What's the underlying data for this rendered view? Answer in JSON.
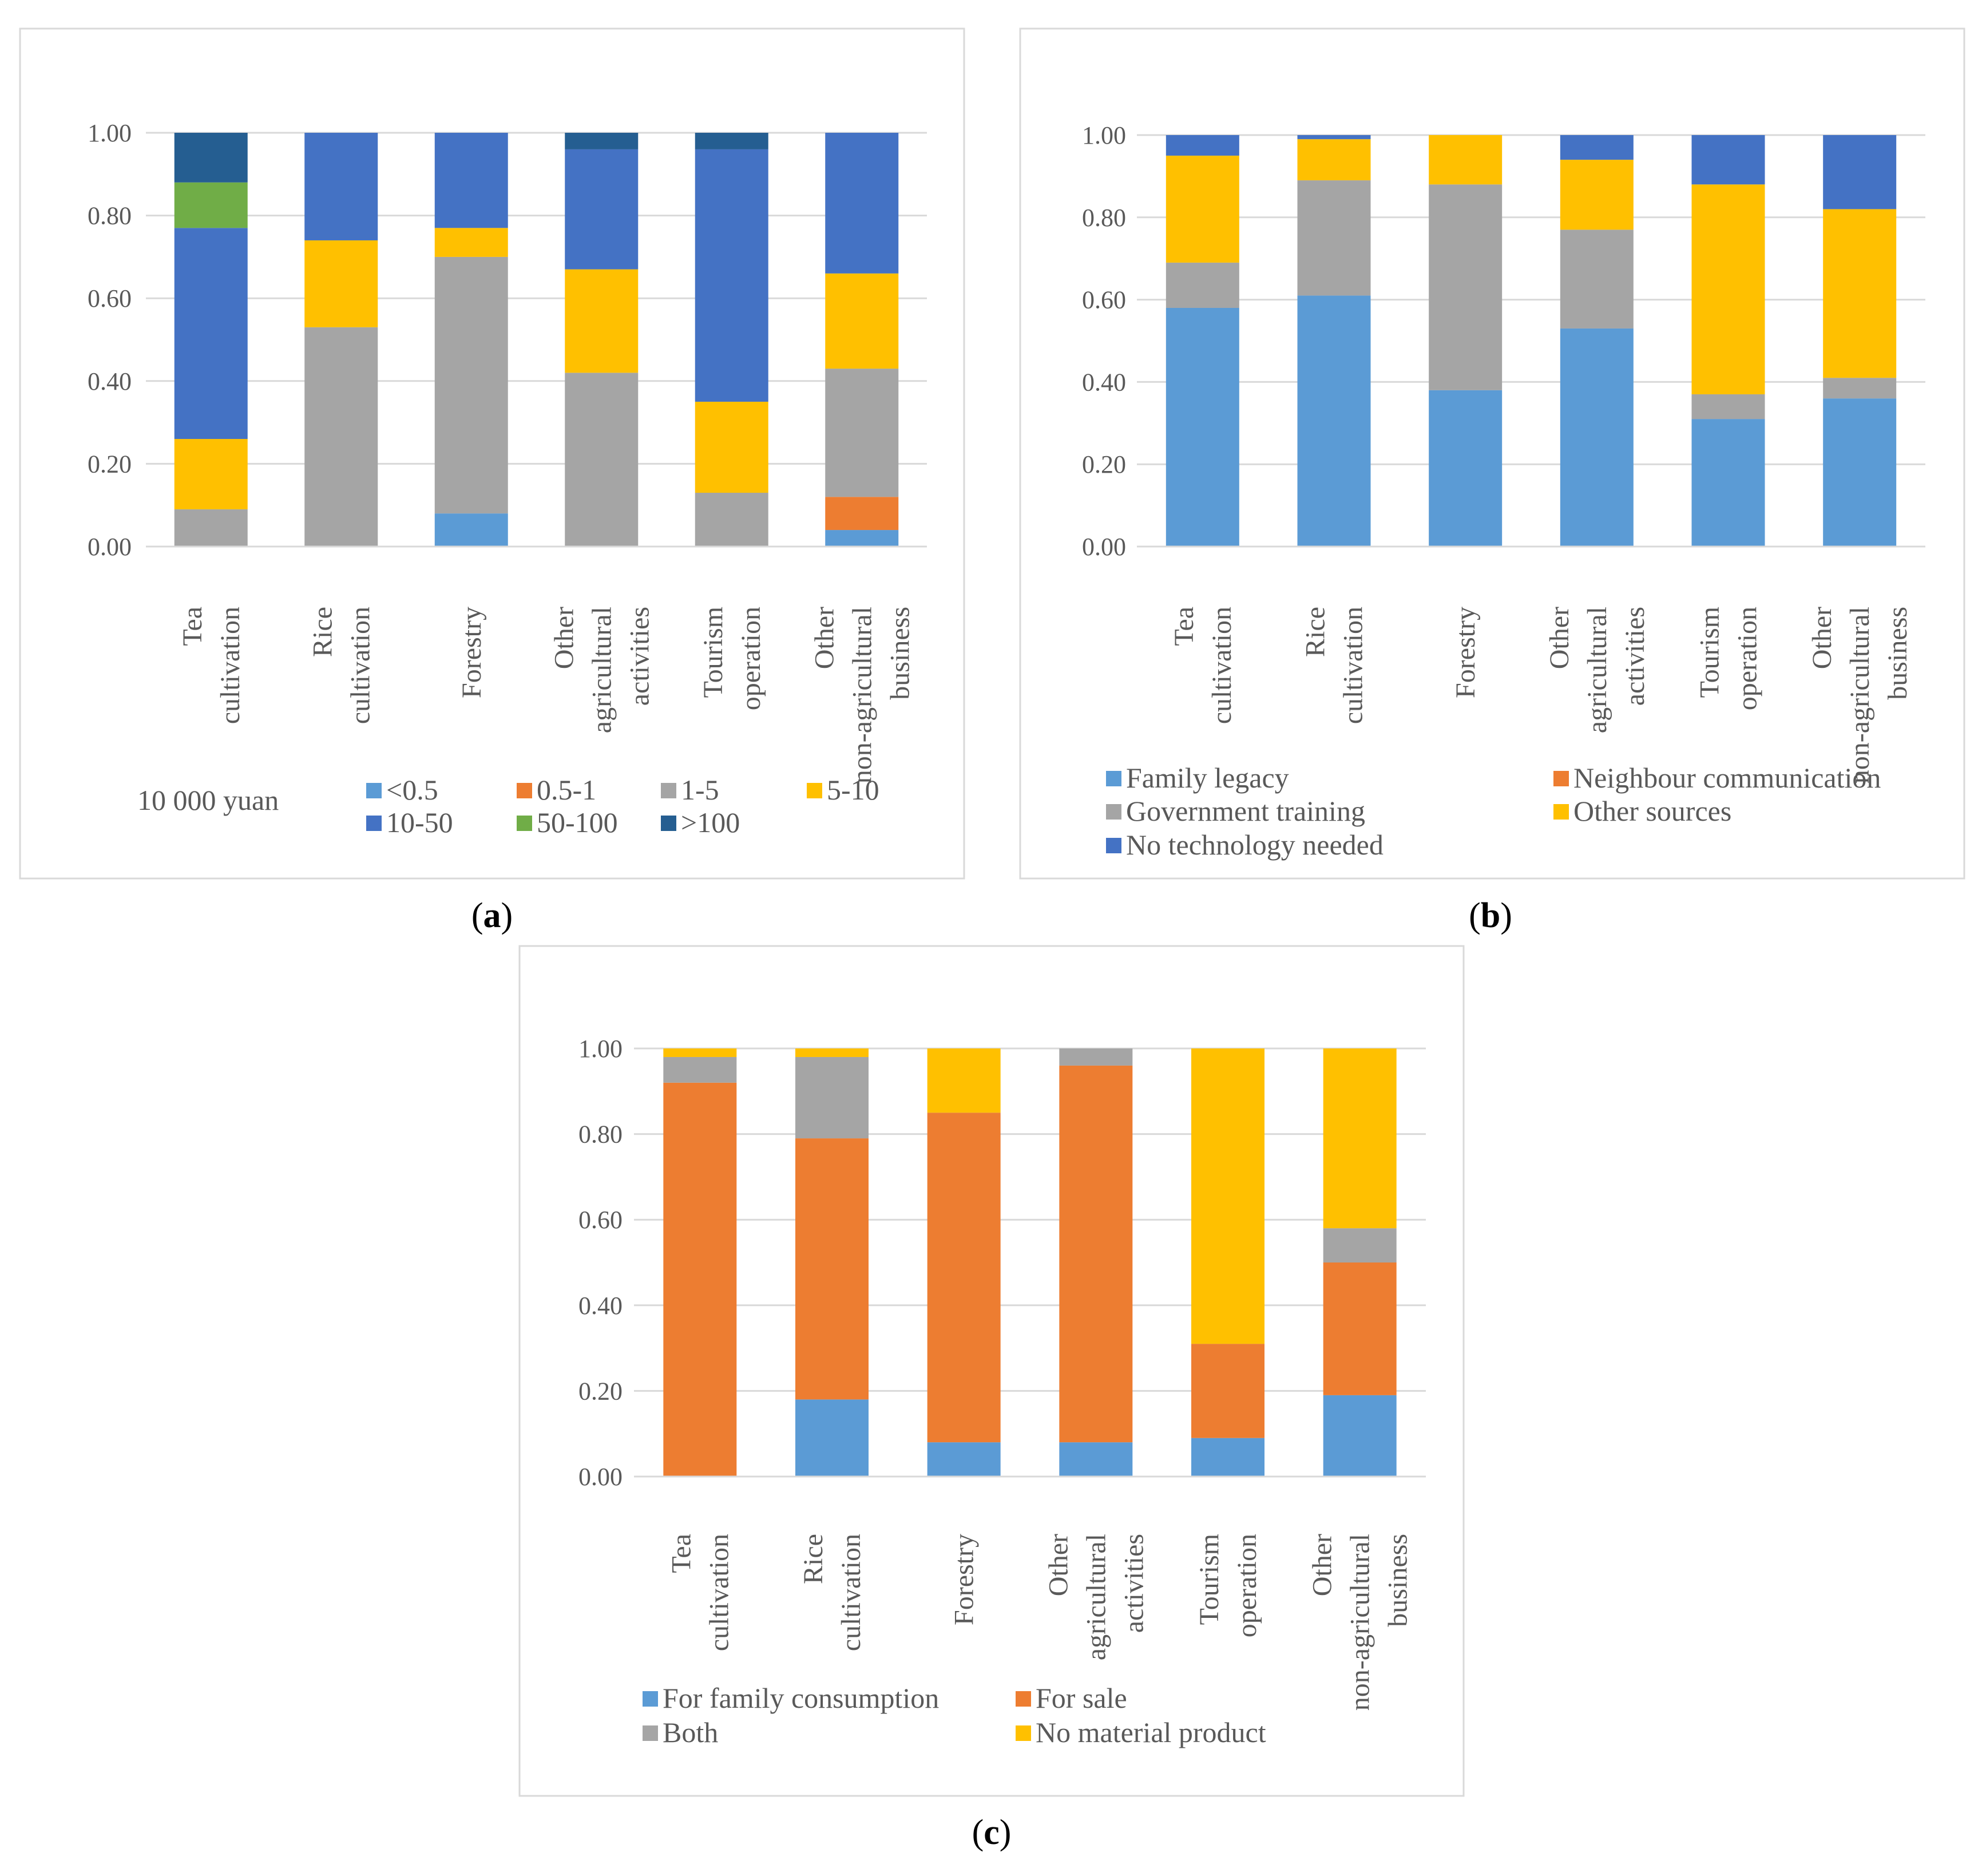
{
  "figure": {
    "categories": [
      [
        "Tea",
        "cultivation"
      ],
      [
        "Rice",
        "cultivation"
      ],
      [
        "Forestry"
      ],
      [
        "Other",
        "agricultural",
        "activities"
      ],
      [
        "Tourism",
        "operation"
      ],
      [
        "Other",
        "non-agricultural",
        "business"
      ]
    ],
    "y_ticks": [
      "0.00",
      "0.20",
      "0.40",
      "0.60",
      "0.80",
      "1.00"
    ]
  },
  "chart_data": [
    {
      "id": "a",
      "type": "bar",
      "stacked": true,
      "caption": "a",
      "ylim": [
        0,
        1
      ],
      "grid": true,
      "legend_title": "10 000 yuan",
      "legend_position": "bottom",
      "categories": [
        "Tea cultivation",
        "Rice cultivation",
        "Forestry",
        "Other agricultural activities",
        "Tourism operation",
        "Other non-agricultural business"
      ],
      "series": [
        {
          "name": "<0.5",
          "color": "#5B9BD5",
          "values": [
            0.0,
            0.0,
            0.08,
            0.0,
            0.0,
            0.04
          ]
        },
        {
          "name": "0.5-1",
          "color": "#ED7D31",
          "values": [
            0.0,
            0.0,
            0.0,
            0.0,
            0.0,
            0.08
          ]
        },
        {
          "name": "1-5",
          "color": "#A5A5A5",
          "values": [
            0.09,
            0.53,
            0.62,
            0.42,
            0.13,
            0.31
          ]
        },
        {
          "name": "5-10",
          "color": "#FFC000",
          "values": [
            0.17,
            0.21,
            0.07,
            0.25,
            0.22,
            0.23
          ]
        },
        {
          "name": "10-50",
          "color": "#4472C4",
          "values": [
            0.51,
            0.26,
            0.23,
            0.29,
            0.61,
            0.34
          ]
        },
        {
          "name": "50-100",
          "color": "#70AD47",
          "values": [
            0.11,
            0.0,
            0.0,
            0.0,
            0.0,
            0.0
          ]
        },
        {
          "name": ">100",
          "color": "#255E91",
          "values": [
            0.12,
            0.0,
            0.0,
            0.04,
            0.04,
            0.0
          ]
        }
      ]
    },
    {
      "id": "b",
      "type": "bar",
      "stacked": true,
      "caption": "b",
      "ylim": [
        0,
        1
      ],
      "grid": true,
      "legend_position": "bottom",
      "categories": [
        "Tea cultivation",
        "Rice cultivation",
        "Forestry",
        "Other agricultural activities",
        "Tourism operation",
        "Other non-agricultural business"
      ],
      "series": [
        {
          "name": "Family legacy",
          "color": "#5B9BD5",
          "values": [
            0.58,
            0.61,
            0.38,
            0.53,
            0.31,
            0.36
          ]
        },
        {
          "name": "Neighbour communication",
          "color": "#ED7D31",
          "values": [
            0.0,
            0.0,
            0.0,
            0.0,
            0.0,
            0.0
          ]
        },
        {
          "name": "Government training",
          "color": "#A5A5A5",
          "values": [
            0.11,
            0.28,
            0.5,
            0.24,
            0.06,
            0.05
          ]
        },
        {
          "name": "Other sources",
          "color": "#FFC000",
          "values": [
            0.26,
            0.1,
            0.12,
            0.17,
            0.51,
            0.41
          ]
        },
        {
          "name": "No technology needed",
          "color": "#4472C4",
          "values": [
            0.05,
            0.01,
            0.0,
            0.06,
            0.12,
            0.18
          ]
        }
      ]
    },
    {
      "id": "c",
      "type": "bar",
      "stacked": true,
      "caption": "c",
      "ylim": [
        0,
        1
      ],
      "grid": true,
      "legend_position": "bottom",
      "categories": [
        "Tea cultivation",
        "Rice cultivation",
        "Forestry",
        "Other agricultural activities",
        "Tourism operation",
        "Other non-agricultural business"
      ],
      "series": [
        {
          "name": "For family consumption",
          "color": "#5B9BD5",
          "values": [
            0.0,
            0.18,
            0.08,
            0.08,
            0.09,
            0.19
          ]
        },
        {
          "name": "For sale",
          "color": "#ED7D31",
          "values": [
            0.92,
            0.61,
            0.77,
            0.88,
            0.22,
            0.31
          ]
        },
        {
          "name": "Both",
          "color": "#A5A5A5",
          "values": [
            0.06,
            0.19,
            0.0,
            0.04,
            0.0,
            0.08
          ]
        },
        {
          "name": "No material product",
          "color": "#FFC000",
          "values": [
            0.02,
            0.02,
            0.15,
            0.0,
            0.69,
            0.42
          ]
        }
      ]
    }
  ]
}
